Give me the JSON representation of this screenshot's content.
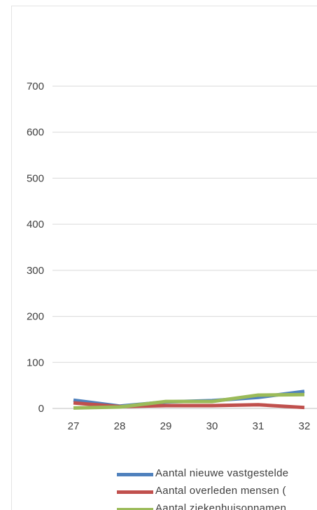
{
  "chart_data": {
    "type": "line",
    "x": [
      "27",
      "28",
      "29",
      "30",
      "31",
      "32"
    ],
    "ylim": [
      0,
      700
    ],
    "y_ticks": [
      "0",
      "100",
      "200",
      "300",
      "400",
      "500",
      "600",
      "700"
    ],
    "grid": true,
    "legend_position": "bottom",
    "series": [
      {
        "name": "Aantal nieuwe vastgestelde",
        "color": "#4f81bd",
        "values": [
          18,
          5,
          14,
          17,
          24,
          37
        ]
      },
      {
        "name": "Aantal overleden mensen  (",
        "color": "#c0504d",
        "values": [
          12,
          4,
          6,
          6,
          8,
          2
        ]
      },
      {
        "name": "Aantal ziekenhuisopnamen",
        "color": "#9bbb59",
        "values": [
          1,
          3,
          15,
          15,
          29,
          30
        ]
      }
    ]
  }
}
